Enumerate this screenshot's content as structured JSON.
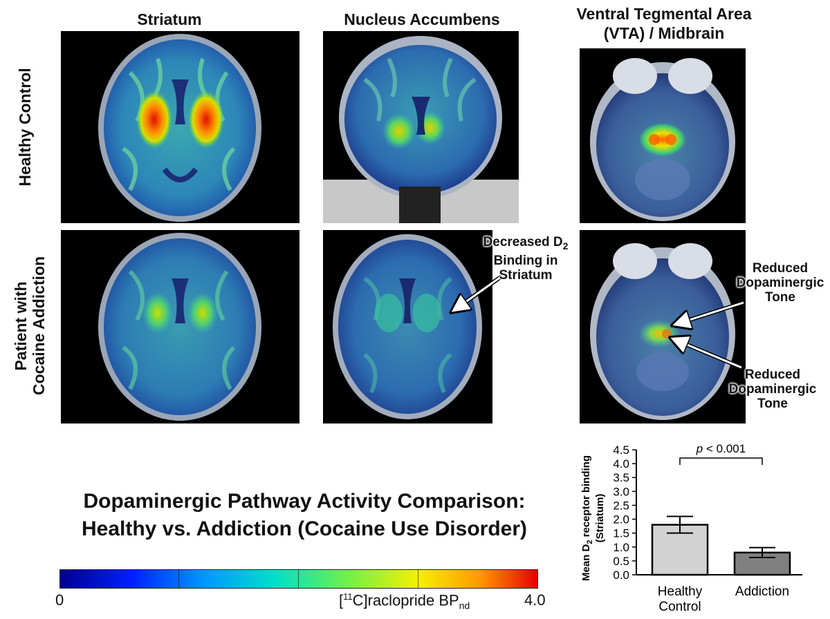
{
  "columns": [
    "Striatum",
    "Nucleus Accumbens",
    "Ventral Tegmental Area",
    "(VTA) / Midbrain"
  ],
  "rows": [
    "Healthy Control",
    "Patient with",
    "Cocaine Addiction"
  ],
  "annotations": {
    "nacc_line1": "Decreased D",
    "nacc_sub": "2",
    "nacc_line2": "Binding in",
    "nacc_line3": "Striatum",
    "vta_top_1": "Reduced",
    "vta_top_2": "Dopaminergic",
    "vta_top_3": "Tone",
    "vta_bot_1": "Reduced",
    "vta_bot_2": "Dopaminergic",
    "vta_bot_3": "Tone"
  },
  "title": {
    "line1": "Dopaminergic Pathway Activity Comparison:",
    "line2": "Healthy vs. Addiction (Cocaine Use Disorder)"
  },
  "colorbar": {
    "min": "0",
    "max": "4.0",
    "label_pre": "[",
    "label_sup": "11",
    "label_mid": "C]raclopride BP",
    "label_sub": "nd"
  },
  "chart_data": {
    "type": "bar",
    "categories": [
      "Healthy Control",
      "Addiction"
    ],
    "category_lines": [
      [
        "Healthy",
        "Control"
      ],
      [
        "Addiction"
      ]
    ],
    "values": [
      1.8,
      0.8
    ],
    "error": [
      0.3,
      0.18
    ],
    "bar_colors": [
      "#d3d3d3",
      "#808080"
    ],
    "ylabel_line1": "Mean D",
    "ylabel_sub": "2",
    "ylabel_line1_rest": " receptor binding",
    "ylabel_line2": "(Striatum)",
    "ylim": [
      0,
      4.5
    ],
    "yticks": [
      "0.0",
      "0.5",
      "1.0",
      "1.5",
      "2.0",
      "2.5",
      "3.0",
      "3.5",
      "4.0",
      "4.5"
    ],
    "significance_p": "p",
    "significance_rest": " < 0.001"
  }
}
